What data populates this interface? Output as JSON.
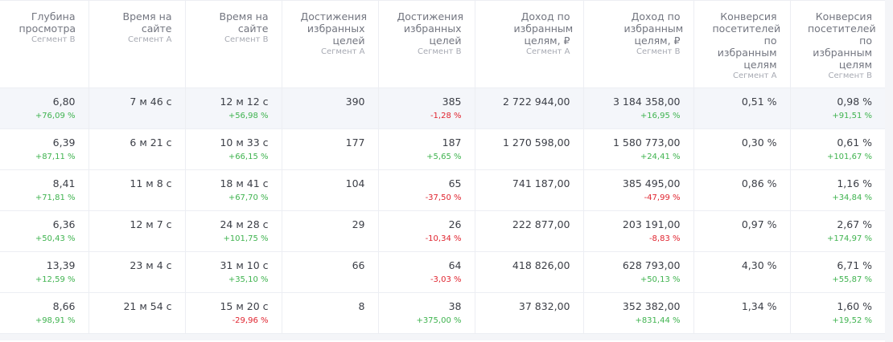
{
  "table": {
    "columns": [
      {
        "title": "Глубина просмотра",
        "segment": "Сегмент В"
      },
      {
        "title": "Время на сайте",
        "segment": "Сегмент А"
      },
      {
        "title": "Время на сайте",
        "segment": "Сегмент В"
      },
      {
        "title": "Достижения избранных целей",
        "segment": "Сегмент А"
      },
      {
        "title": "Достижения избранных целей",
        "segment": "Сегмент В"
      },
      {
        "title": "Доход по избранным целям, ₽",
        "segment": "Сегмент А"
      },
      {
        "title": "Доход по избранным целям, ₽",
        "segment": "Сегмент В"
      },
      {
        "title": "Конверсия посетителей по избранным целям",
        "segment": "Сегмент А"
      },
      {
        "title": "Конверсия посетителей по избранным целям",
        "segment": "Сегмент В"
      }
    ],
    "rows": [
      {
        "cells": [
          {
            "value": "6,80",
            "delta": "+76,09 %"
          },
          {
            "value": "7 м 46 с",
            "delta": ""
          },
          {
            "value": "12 м 12 с",
            "delta": "+56,98 %"
          },
          {
            "value": "390",
            "delta": ""
          },
          {
            "value": "385",
            "delta": "-1,28 %"
          },
          {
            "value": "2 722 944,00",
            "delta": ""
          },
          {
            "value": "3 184 358,00",
            "delta": "+16,95 %"
          },
          {
            "value": "0,51 %",
            "delta": ""
          },
          {
            "value": "0,98 %",
            "delta": "+91,51 %"
          }
        ]
      },
      {
        "cells": [
          {
            "value": "6,39",
            "delta": "+87,11 %"
          },
          {
            "value": "6 м 21 с",
            "delta": ""
          },
          {
            "value": "10 м 33 с",
            "delta": "+66,15 %"
          },
          {
            "value": "177",
            "delta": ""
          },
          {
            "value": "187",
            "delta": "+5,65 %"
          },
          {
            "value": "1 270 598,00",
            "delta": ""
          },
          {
            "value": "1 580 773,00",
            "delta": "+24,41 %"
          },
          {
            "value": "0,30 %",
            "delta": ""
          },
          {
            "value": "0,61 %",
            "delta": "+101,67 %"
          }
        ]
      },
      {
        "cells": [
          {
            "value": "8,41",
            "delta": "+71,81 %"
          },
          {
            "value": "11 м 8 с",
            "delta": ""
          },
          {
            "value": "18 м 41 с",
            "delta": "+67,70 %"
          },
          {
            "value": "104",
            "delta": ""
          },
          {
            "value": "65",
            "delta": "-37,50 %"
          },
          {
            "value": "741 187,00",
            "delta": ""
          },
          {
            "value": "385 495,00",
            "delta": "-47,99 %"
          },
          {
            "value": "0,86 %",
            "delta": ""
          },
          {
            "value": "1,16 %",
            "delta": "+34,84 %"
          }
        ]
      },
      {
        "cells": [
          {
            "value": "6,36",
            "delta": "+50,43 %"
          },
          {
            "value": "12 м 7 с",
            "delta": ""
          },
          {
            "value": "24 м 28 с",
            "delta": "+101,75 %"
          },
          {
            "value": "29",
            "delta": ""
          },
          {
            "value": "26",
            "delta": "-10,34 %"
          },
          {
            "value": "222 877,00",
            "delta": ""
          },
          {
            "value": "203 191,00",
            "delta": "-8,83 %"
          },
          {
            "value": "0,97 %",
            "delta": ""
          },
          {
            "value": "2,67 %",
            "delta": "+174,97 %"
          }
        ]
      },
      {
        "cells": [
          {
            "value": "13,39",
            "delta": "+12,59 %"
          },
          {
            "value": "23 м 4 с",
            "delta": ""
          },
          {
            "value": "31 м 10 с",
            "delta": "+35,10 %"
          },
          {
            "value": "66",
            "delta": ""
          },
          {
            "value": "64",
            "delta": "-3,03 %"
          },
          {
            "value": "418 826,00",
            "delta": ""
          },
          {
            "value": "628 793,00",
            "delta": "+50,13 %"
          },
          {
            "value": "4,30 %",
            "delta": ""
          },
          {
            "value": "6,71 %",
            "delta": "+55,87 %"
          }
        ]
      },
      {
        "cells": [
          {
            "value": "8,66",
            "delta": "+98,91 %"
          },
          {
            "value": "21 м 54 с",
            "delta": ""
          },
          {
            "value": "15 м 20 с",
            "delta": "-29,96 %"
          },
          {
            "value": "8",
            "delta": ""
          },
          {
            "value": "38",
            "delta": "+375,00 %"
          },
          {
            "value": "37 832,00",
            "delta": ""
          },
          {
            "value": "352 382,00",
            "delta": "+831,44 %"
          },
          {
            "value": "1,34 %",
            "delta": ""
          },
          {
            "value": "1,60 %",
            "delta": "+19,52 %"
          }
        ]
      }
    ]
  },
  "colors": {
    "positive": "#3fb34f",
    "negative": "#e0242f",
    "highlight_row": "#f4f6fa",
    "border": "#eceef3"
  }
}
